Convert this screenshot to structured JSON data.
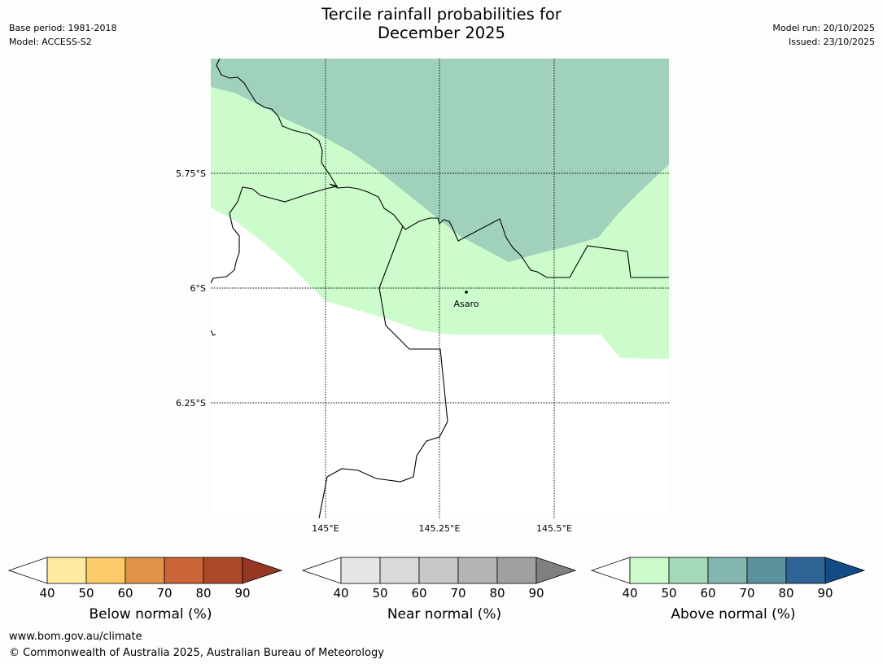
{
  "title": {
    "line1": "Tercile rainfall probabilities for",
    "line2": "December 2025"
  },
  "meta": {
    "base_period": "Base period: 1981-2018",
    "model": "Model: ACCESS-S2",
    "model_run": "Model run: 20/10/2025",
    "issued": "Issued: 23/10/2025"
  },
  "map": {
    "lat_labels": [
      "5.75°S",
      "6°S",
      "6.25°S"
    ],
    "lon_labels": [
      "145°E",
      "145.25°E",
      "145.5°E"
    ],
    "town": "Asaro",
    "colors": {
      "above_50_60": "#9fd1bb",
      "above_40_50": "#ccfccc",
      "none": "#ffffff"
    }
  },
  "colorbars": [
    {
      "label": "Below normal (%)",
      "ticks": [
        "40",
        "50",
        "60",
        "70",
        "80",
        "90"
      ],
      "colors": [
        "#ffeba0",
        "#fdcb67",
        "#e0944a",
        "#cb6436",
        "#ad4928",
        "#963723"
      ]
    },
    {
      "label": "Near normal (%)",
      "ticks": [
        "40",
        "50",
        "60",
        "70",
        "80",
        "90"
      ],
      "colors": [
        "#e6e6e6",
        "#d9d9d9",
        "#c8c8c8",
        "#b4b4b4",
        "#a0a0a0",
        "#808080"
      ]
    },
    {
      "label": "Above normal (%)",
      "ticks": [
        "40",
        "50",
        "60",
        "70",
        "80",
        "90"
      ],
      "colors": [
        "#ccfccc",
        "#a4d8b6",
        "#82b6ae",
        "#5a929e",
        "#306496",
        "#134c84"
      ]
    }
  ],
  "footer": {
    "url": "www.bom.gov.au/climate",
    "copyright": "© Commonwealth of Australia 2025, Australian Bureau of Meteorology"
  }
}
